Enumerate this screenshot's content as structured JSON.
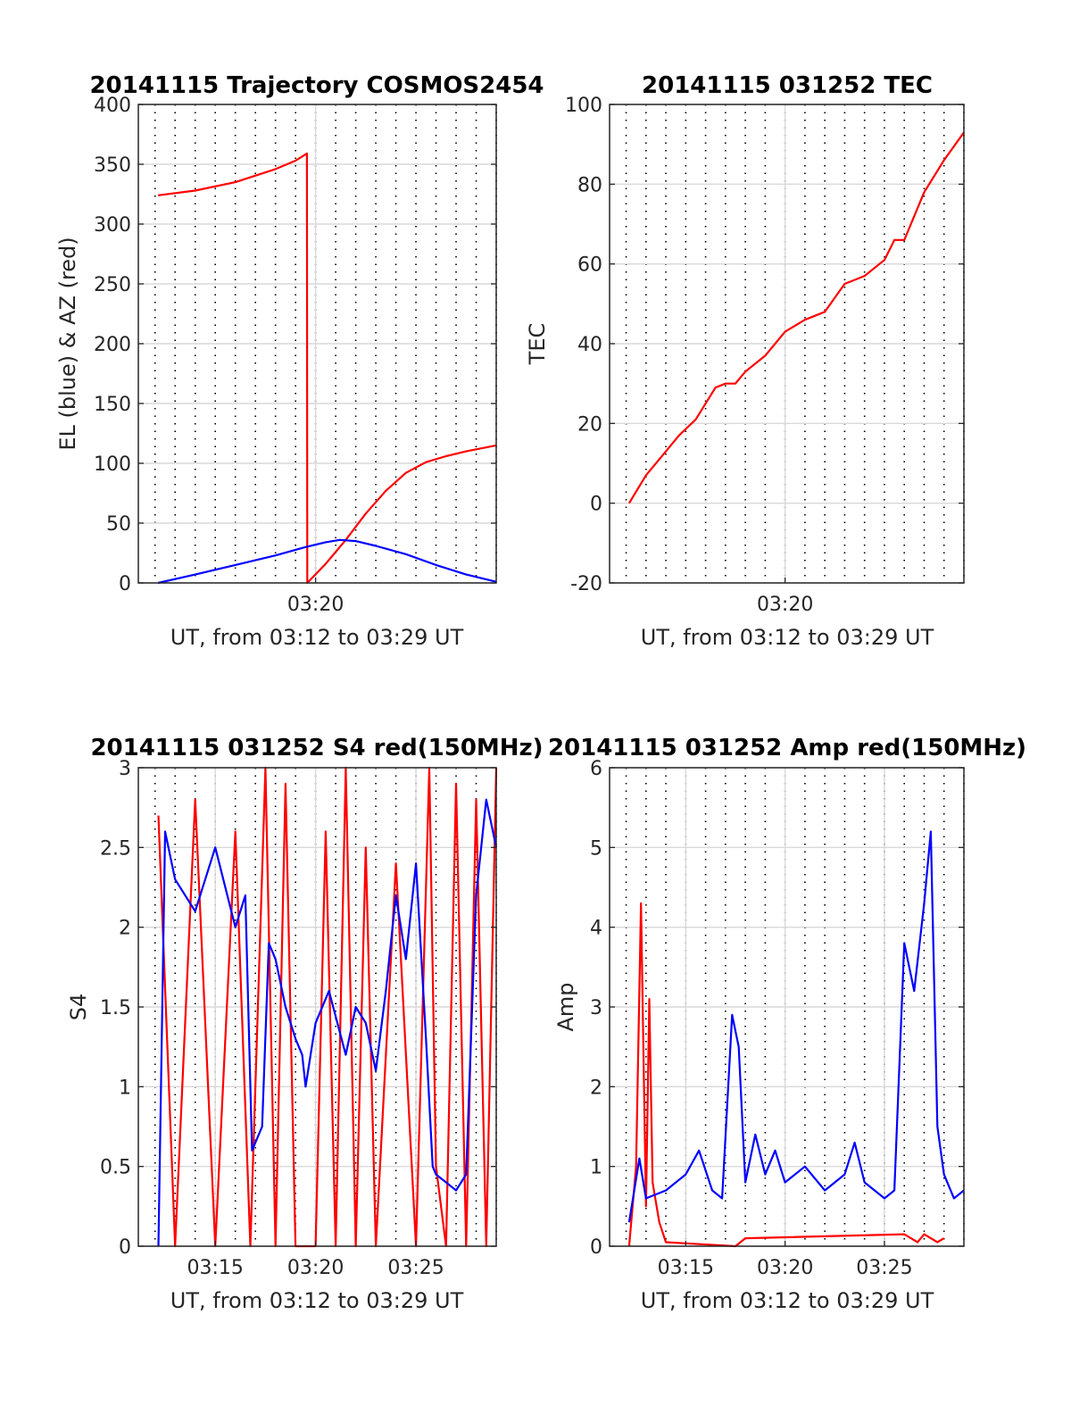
{
  "chart_data": [
    {
      "type": "line",
      "title": "20141115 Trajectory COSMOS2454",
      "xlabel": "UT, from 03:12 to 03:29 UT",
      "ylabel": "EL (blue) & AZ (red)",
      "xlim": [
        "03:11:10",
        "03:29:00"
      ],
      "ylim": [
        0,
        400
      ],
      "yticks": [
        "0",
        "50",
        "100",
        "150",
        "200",
        "250",
        "300",
        "350",
        "400"
      ],
      "xticks": [
        "03:20"
      ],
      "grid": "major solid, minor dotted",
      "series": [
        {
          "color": "#ff0000",
          "x": [
            "03:12:09",
            "03:14:00",
            "03:16:00",
            "03:18:00",
            "03:19:00",
            "03:19:34",
            "03:19:35",
            "03:20:30",
            "03:21:30",
            "03:22:30",
            "03:23:30",
            "03:24:30",
            "03:25:30",
            "03:26:30",
            "03:27:30",
            "03:29:00"
          ],
          "values": [
            324,
            328,
            335,
            346,
            353,
            359,
            0,
            16,
            36,
            58,
            77,
            92,
            101,
            106,
            110,
            115
          ]
        },
        {
          "color": "#0000ff",
          "x": [
            "03:12:09",
            "03:14:00",
            "03:16:00",
            "03:18:00",
            "03:19:30",
            "03:20:30",
            "03:21:12",
            "03:22:00",
            "03:23:00",
            "03:24:30",
            "03:26:00",
            "03:27:30",
            "03:29:00"
          ],
          "values": [
            0,
            7,
            15,
            23,
            30,
            34,
            36,
            35,
            31,
            24,
            15,
            7,
            1
          ]
        }
      ]
    },
    {
      "type": "line",
      "title": "20141115 031252 TEC",
      "xlabel": "UT, from 03:12 to 03:29 UT",
      "ylabel": "TEC",
      "xlim": [
        "03:11:10",
        "03:29:00"
      ],
      "ylim": [
        -20,
        100
      ],
      "yticks": [
        "-20",
        "0",
        "20",
        "40",
        "60",
        "80",
        "100"
      ],
      "xticks": [
        "03:20"
      ],
      "grid": "major solid, minor dotted",
      "series": [
        {
          "color": "#ff0000",
          "x": [
            "03:12:09",
            "03:13:00",
            "03:14:00",
            "03:14:40",
            "03:15:30",
            "03:16:30",
            "03:17:00",
            "03:17:30",
            "03:18:00",
            "03:19:00",
            "03:20:00",
            "03:21:00",
            "03:22:00",
            "03:23:00",
            "03:24:00",
            "03:25:00",
            "03:25:30",
            "03:26:00",
            "03:27:00",
            "03:28:00",
            "03:29:00"
          ],
          "values": [
            0,
            7,
            13,
            17,
            21,
            29,
            30,
            30,
            33,
            37,
            43,
            46,
            48,
            55,
            57,
            61,
            66,
            66,
            78,
            86,
            93
          ]
        }
      ]
    },
    {
      "type": "line",
      "title": "20141115 031252 S4 red(150MHz)",
      "xlabel": "UT, from 03:12 to 03:29 UT",
      "ylabel": "S4",
      "xlim": [
        "03:11:10",
        "03:29:00"
      ],
      "ylim": [
        0,
        3
      ],
      "yticks": [
        "0",
        "0.5",
        "1",
        "1.5",
        "2",
        "2.5",
        "3"
      ],
      "xticks": [
        "03:15",
        "03:20",
        "03:25"
      ],
      "grid": "major solid, minor dotted",
      "series": [
        {
          "color": "#ff0000",
          "x": [
            "03:12:10",
            "03:13:00",
            "03:14:00",
            "03:15:00",
            "03:16:00",
            "03:16:45",
            "03:17:30",
            "03:18:00",
            "03:18:30",
            "03:19:00",
            "03:20:00",
            "03:20:30",
            "03:21:00",
            "03:21:30",
            "03:22:00",
            "03:22:30",
            "03:23:00",
            "03:24:00",
            "03:25:00",
            "03:25:40",
            "03:26:00",
            "03:26:30",
            "03:27:00",
            "03:27:30",
            "03:28:00",
            "03:28:30",
            "03:29:00"
          ],
          "values": [
            2.7,
            0,
            2.8,
            0,
            2.6,
            0,
            3,
            0,
            2.9,
            0,
            0,
            2.6,
            0,
            3,
            0,
            2.5,
            0,
            2.4,
            0,
            3,
            0.5,
            0,
            2.9,
            0,
            2.8,
            0,
            3
          ]
        },
        {
          "color": "#0000ff",
          "x": [
            "03:12:10",
            "03:12:30",
            "03:13:00",
            "03:14:00",
            "03:15:00",
            "03:16:00",
            "03:16:30",
            "03:16:50",
            "03:17:20",
            "03:17:40",
            "03:18:00",
            "03:18:30",
            "03:19:00",
            "03:19:20",
            "03:19:30",
            "03:20:00",
            "03:20:40",
            "03:21:30",
            "03:22:00",
            "03:22:30",
            "03:23:00",
            "03:23:30",
            "03:24:00",
            "03:24:30",
            "03:25:00",
            "03:25:30",
            "03:25:50",
            "03:26:00",
            "03:26:30",
            "03:27:00",
            "03:27:30",
            "03:28:00",
            "03:28:30",
            "03:29:00"
          ],
          "values": [
            0,
            2.6,
            2.3,
            2.1,
            2.5,
            2.0,
            2.2,
            0.6,
            0.75,
            1.9,
            1.8,
            1.5,
            1.3,
            1.2,
            1.0,
            1.4,
            1.6,
            1.2,
            1.5,
            1.4,
            1.1,
            1.6,
            2.2,
            1.8,
            2.4,
            1.3,
            0.5,
            0.45,
            0.4,
            0.35,
            0.45,
            2.2,
            2.8,
            2.5
          ]
        }
      ]
    },
    {
      "type": "line",
      "title": "20141115 031252 Amp red(150MHz)",
      "xlabel": "UT, from 03:12 to 03:29 UT",
      "ylabel": "Amp",
      "xlim": [
        "03:11:10",
        "03:29:00"
      ],
      "ylim": [
        0,
        6
      ],
      "yticks": [
        "0",
        "1",
        "2",
        "3",
        "4",
        "5",
        "6"
      ],
      "xticks": [
        "03:15",
        "03:20",
        "03:25"
      ],
      "grid": "major solid, minor dotted",
      "series": [
        {
          "color": "#ff0000",
          "x": [
            "03:12:09",
            "03:12:30",
            "03:12:45",
            "03:13:00",
            "03:13:10",
            "03:13:20",
            "03:13:40",
            "03:14:00",
            "03:17:30",
            "03:18:00",
            "03:26:00",
            "03:26:40",
            "03:27:00",
            "03:27:40",
            "03:28:00"
          ],
          "values": [
            0,
            1.0,
            4.3,
            0.5,
            3.1,
            0.8,
            0.3,
            0.05,
            0.0,
            0.1,
            0.15,
            0.05,
            0.15,
            0.05,
            0.1
          ]
        },
        {
          "color": "#0000ff",
          "x": [
            "03:12:09",
            "03:12:40",
            "03:13:00",
            "03:14:00",
            "03:15:00",
            "03:15:40",
            "03:16:20",
            "03:16:50",
            "03:17:20",
            "03:17:40",
            "03:18:00",
            "03:18:30",
            "03:19:00",
            "03:19:30",
            "03:20:00",
            "03:21:00",
            "03:22:00",
            "03:23:00",
            "03:23:30",
            "03:24:00",
            "03:25:00",
            "03:25:30",
            "03:26:00",
            "03:26:30",
            "03:27:00",
            "03:27:20",
            "03:27:40",
            "03:28:00",
            "03:28:30",
            "03:29:00"
          ],
          "values": [
            0.3,
            1.1,
            0.6,
            0.7,
            0.9,
            1.2,
            0.7,
            0.6,
            2.9,
            2.5,
            0.8,
            1.4,
            0.9,
            1.2,
            0.8,
            1.0,
            0.7,
            0.9,
            1.3,
            0.8,
            0.6,
            0.7,
            3.8,
            3.2,
            4.3,
            5.2,
            1.5,
            0.9,
            0.6,
            0.7
          ]
        }
      ]
    }
  ]
}
